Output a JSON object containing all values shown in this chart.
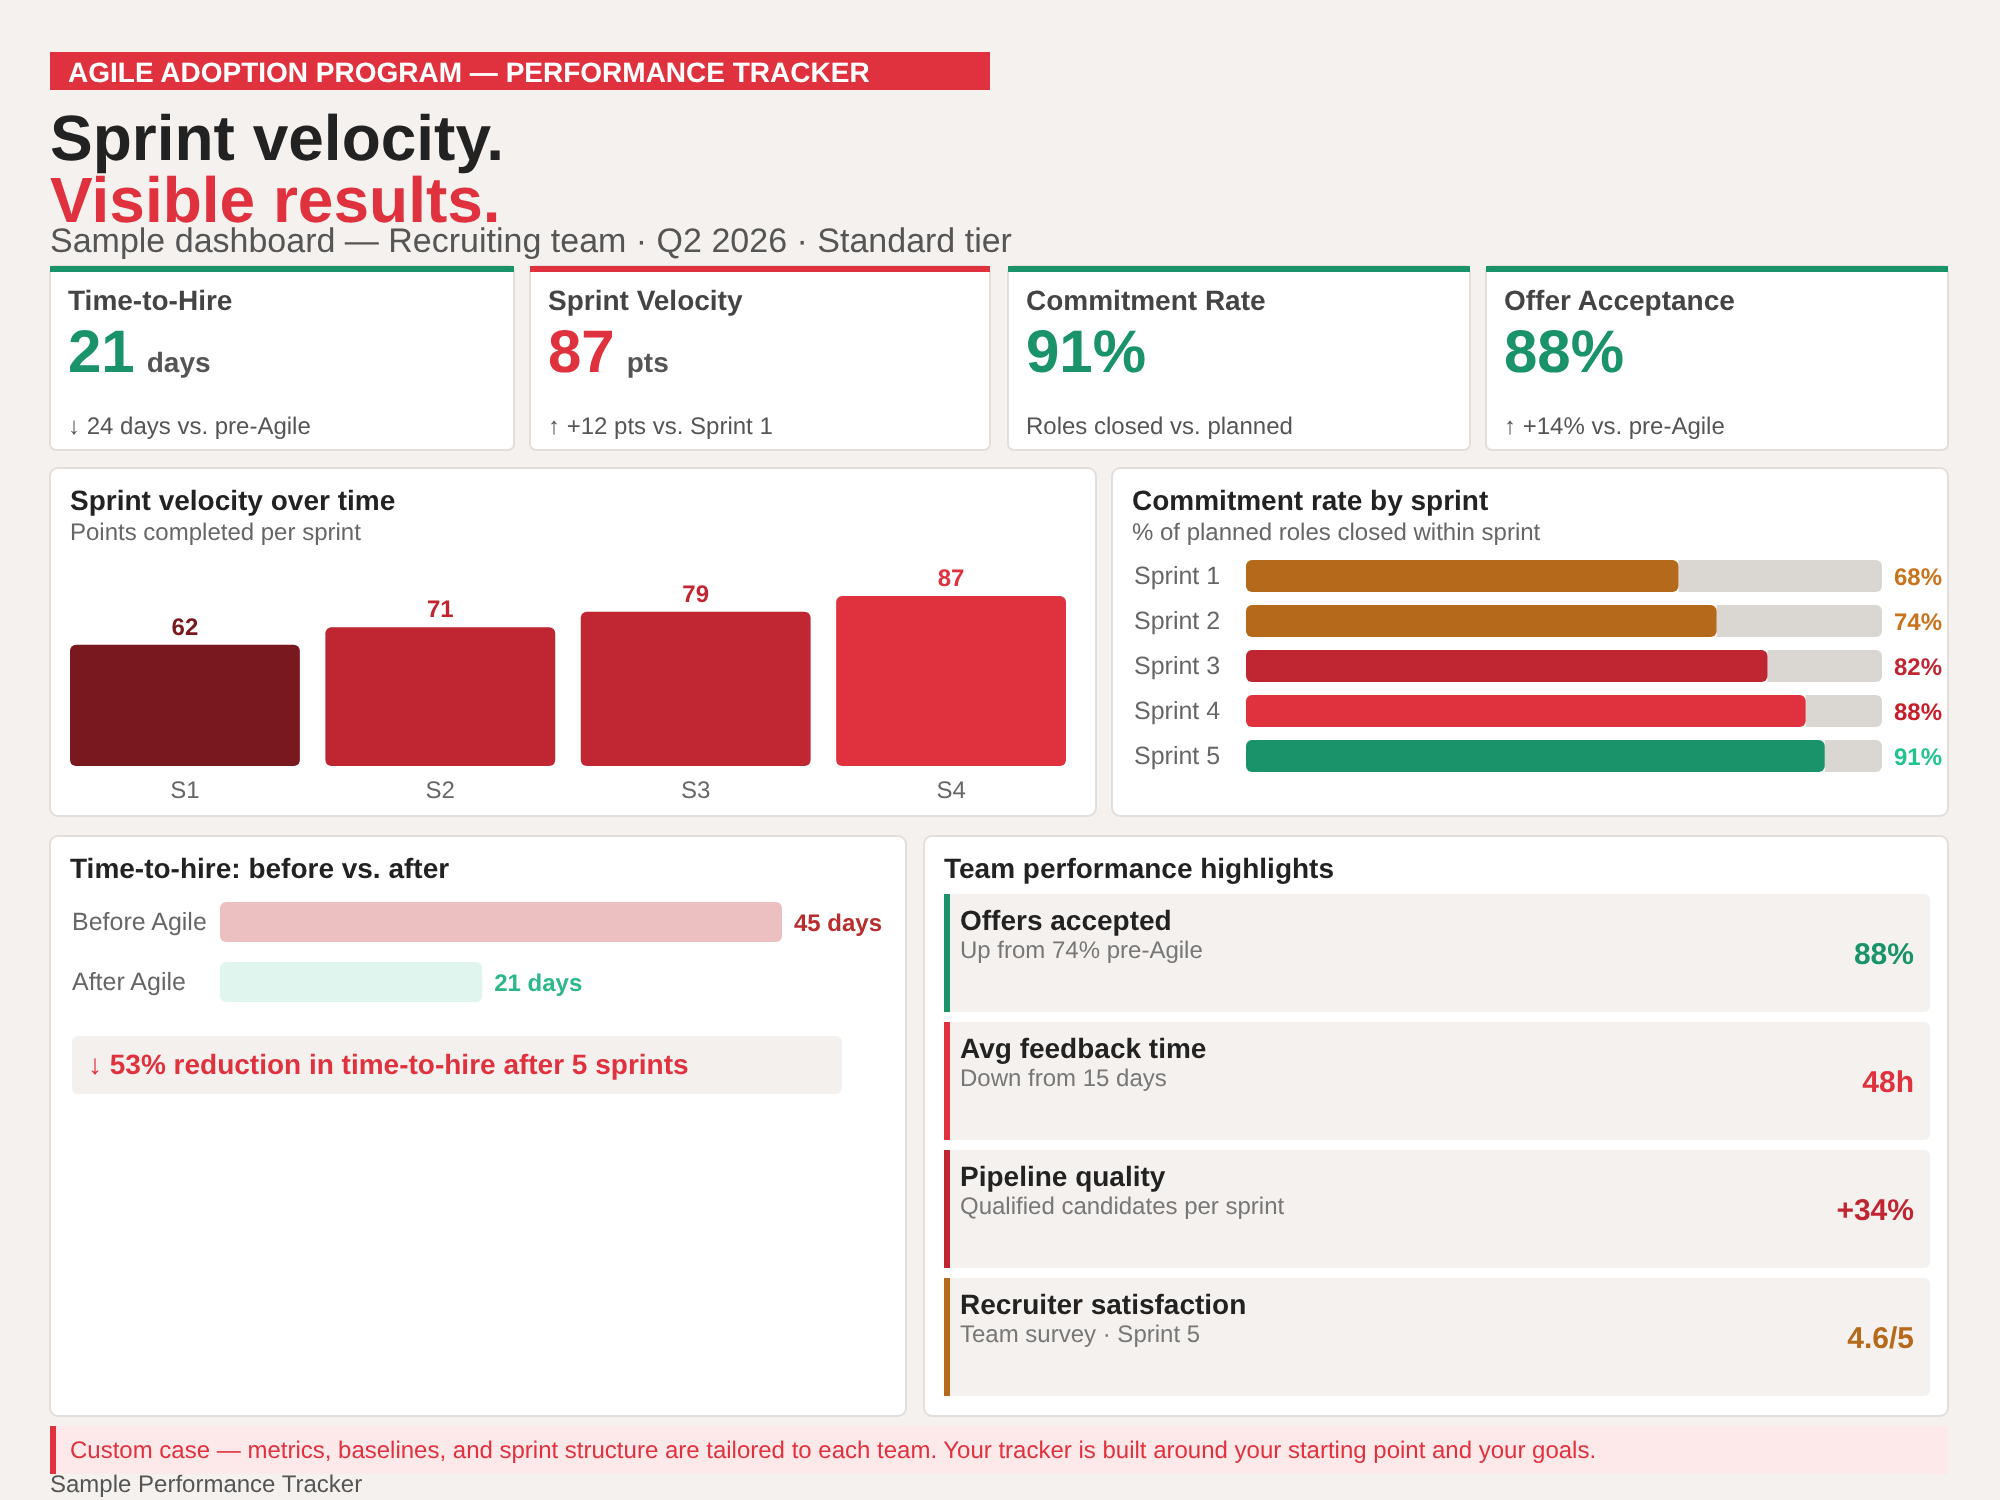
{
  "chart_data": [
    {
      "type": "other",
      "title": "Sprint velocity.",
      "subtitle": "Visible results.",
      "annotations": [
        "AGILE ADOPTION PROGRAM — PERFORMANCE TRACKER",
        "Sample dashboard — Recruiting team · Q2 2026 · Standard tier"
      ]
    },
    {
      "type": "other",
      "title": "Time-to-Hire",
      "color": "#1a936a",
      "annotations": [
        "21",
        "days",
        "↓ 24 days vs. pre-Agile"
      ]
    },
    {
      "type": "other",
      "title": "Sprint Velocity",
      "color": "#e0323e",
      "annotations": [
        "87",
        "pts",
        "↑ +12 pts vs. Sprint 1"
      ]
    },
    {
      "type": "other",
      "title": "Commitment Rate",
      "color": "#1a936a",
      "annotations": [
        "91%",
        "Roles closed vs. planned"
      ]
    },
    {
      "type": "other",
      "title": "Offer Acceptance",
      "color": "#1a936a",
      "annotations": [
        "88%",
        "↑ +14% vs. pre-Agile"
      ]
    },
    {
      "type": "bar",
      "title": "Sprint velocity over time",
      "subtitle": "Points completed per sprint",
      "categories": [
        "S1",
        "S2",
        "S3",
        "S4"
      ],
      "values": [
        62,
        71,
        79,
        87
      ],
      "colors": [
        "#7a1820",
        "#c02532",
        "#c12633",
        "#e0323e"
      ],
      "data_labels": true
    },
    {
      "type": "bar",
      "orientation": "horizontal",
      "title": "Commitment rate by sprint",
      "subtitle": "% of planned roles closed within sprint",
      "categories": [
        "Sprint 1",
        "Sprint 2",
        "Sprint 3",
        "Sprint 4",
        "Sprint 5"
      ],
      "values": [
        68,
        74,
        82,
        88,
        91
      ],
      "colors": [
        "#b5691a",
        "#b5691a",
        "#c02532",
        "#e0323e",
        "#1a936a"
      ],
      "xlim": [
        0,
        100
      ],
      "value_labels": [
        "68%",
        "74%",
        "82%",
        "88%",
        "91%"
      ]
    },
    {
      "type": "bar",
      "orientation": "horizontal",
      "title": "Time-to-hire: before vs. after",
      "categories": [
        "Before Agile",
        "After Agile"
      ],
      "values": [
        45,
        21
      ],
      "colors": [
        "#ecc0c0",
        "#e0f5ee"
      ],
      "value_labels": [
        "45 days",
        "21 days"
      ],
      "annotations": [
        "↓ 53% reduction in time-to-hire after 5 sprints"
      ]
    },
    {
      "type": "other",
      "title": "Team performance highlights",
      "colors": [
        "#1a936a",
        "#e0323e",
        "#c02532",
        "#b5691a"
      ],
      "annotations": [
        "Offers accepted",
        "Up from 74% pre-Agile",
        "88%",
        "Avg feedback time",
        "Down from 15 days",
        "48h",
        "Pipeline quality",
        "Qualified candidates per sprint",
        "+34%",
        "Recruiter satisfaction",
        "Team survey · Sprint 5",
        "4.6/5"
      ]
    },
    {
      "type": "other",
      "annotations": [
        "Custom case — metrics, baselines, and sprint structure are tailored to each team. Your tracker is built around your starting point and your goals.",
        "Sample Performance Tracker"
      ]
    }
  ]
}
